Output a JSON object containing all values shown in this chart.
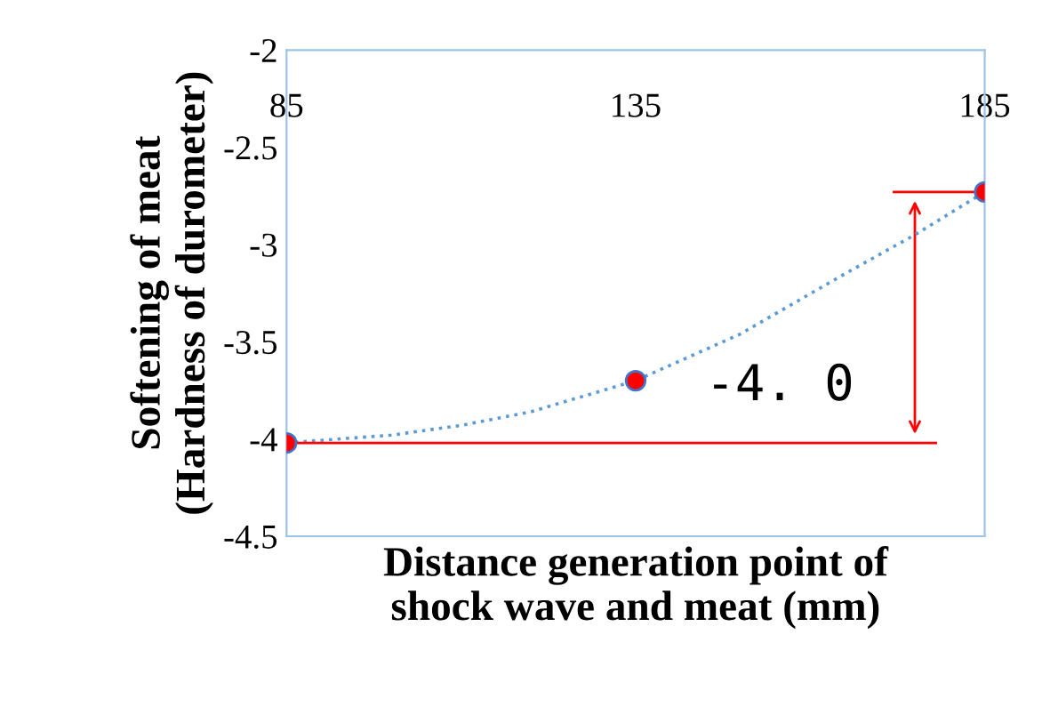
{
  "chart_data": {
    "type": "scatter",
    "xlabel": "Distance generation point of\nshock wave and meat (mm)",
    "ylabel": "Softening of meat\n(Hardness of durometer)",
    "xlim": [
      85,
      185
    ],
    "xticks": [
      85,
      135,
      185
    ],
    "ylim": [
      -4.5,
      -2
    ],
    "yticks": [
      -4.5,
      -4,
      -3.5,
      -3,
      -2.5,
      -2
    ],
    "grid": false,
    "marker": "circle",
    "series": [
      {
        "color": "#ff0000",
        "x": [
          85,
          135,
          185
        ],
        "values": [
          -4.02,
          -3.7,
          -2.73
        ]
      },
      {
        "type": "line",
        "color": "#5b9bd5",
        "line_style": "dotted",
        "marker": "none",
        "x": [
          85,
          100,
          110,
          120,
          135,
          150,
          165,
          175,
          185
        ],
        "values": [
          -4.02,
          -3.98,
          -3.93,
          -3.86,
          -3.7,
          -3.46,
          -3.15,
          -2.95,
          -2.73
        ]
      }
    ],
    "ref_lines": [
      {
        "axis": "y",
        "value": -4.02,
        "color": "#ff0000",
        "line_style": "solid"
      },
      {
        "axis": "y",
        "value": -2.73,
        "color": "#ff0000",
        "line_style": "solid"
      }
    ],
    "annotations": [
      "-4. 0"
    ]
  }
}
